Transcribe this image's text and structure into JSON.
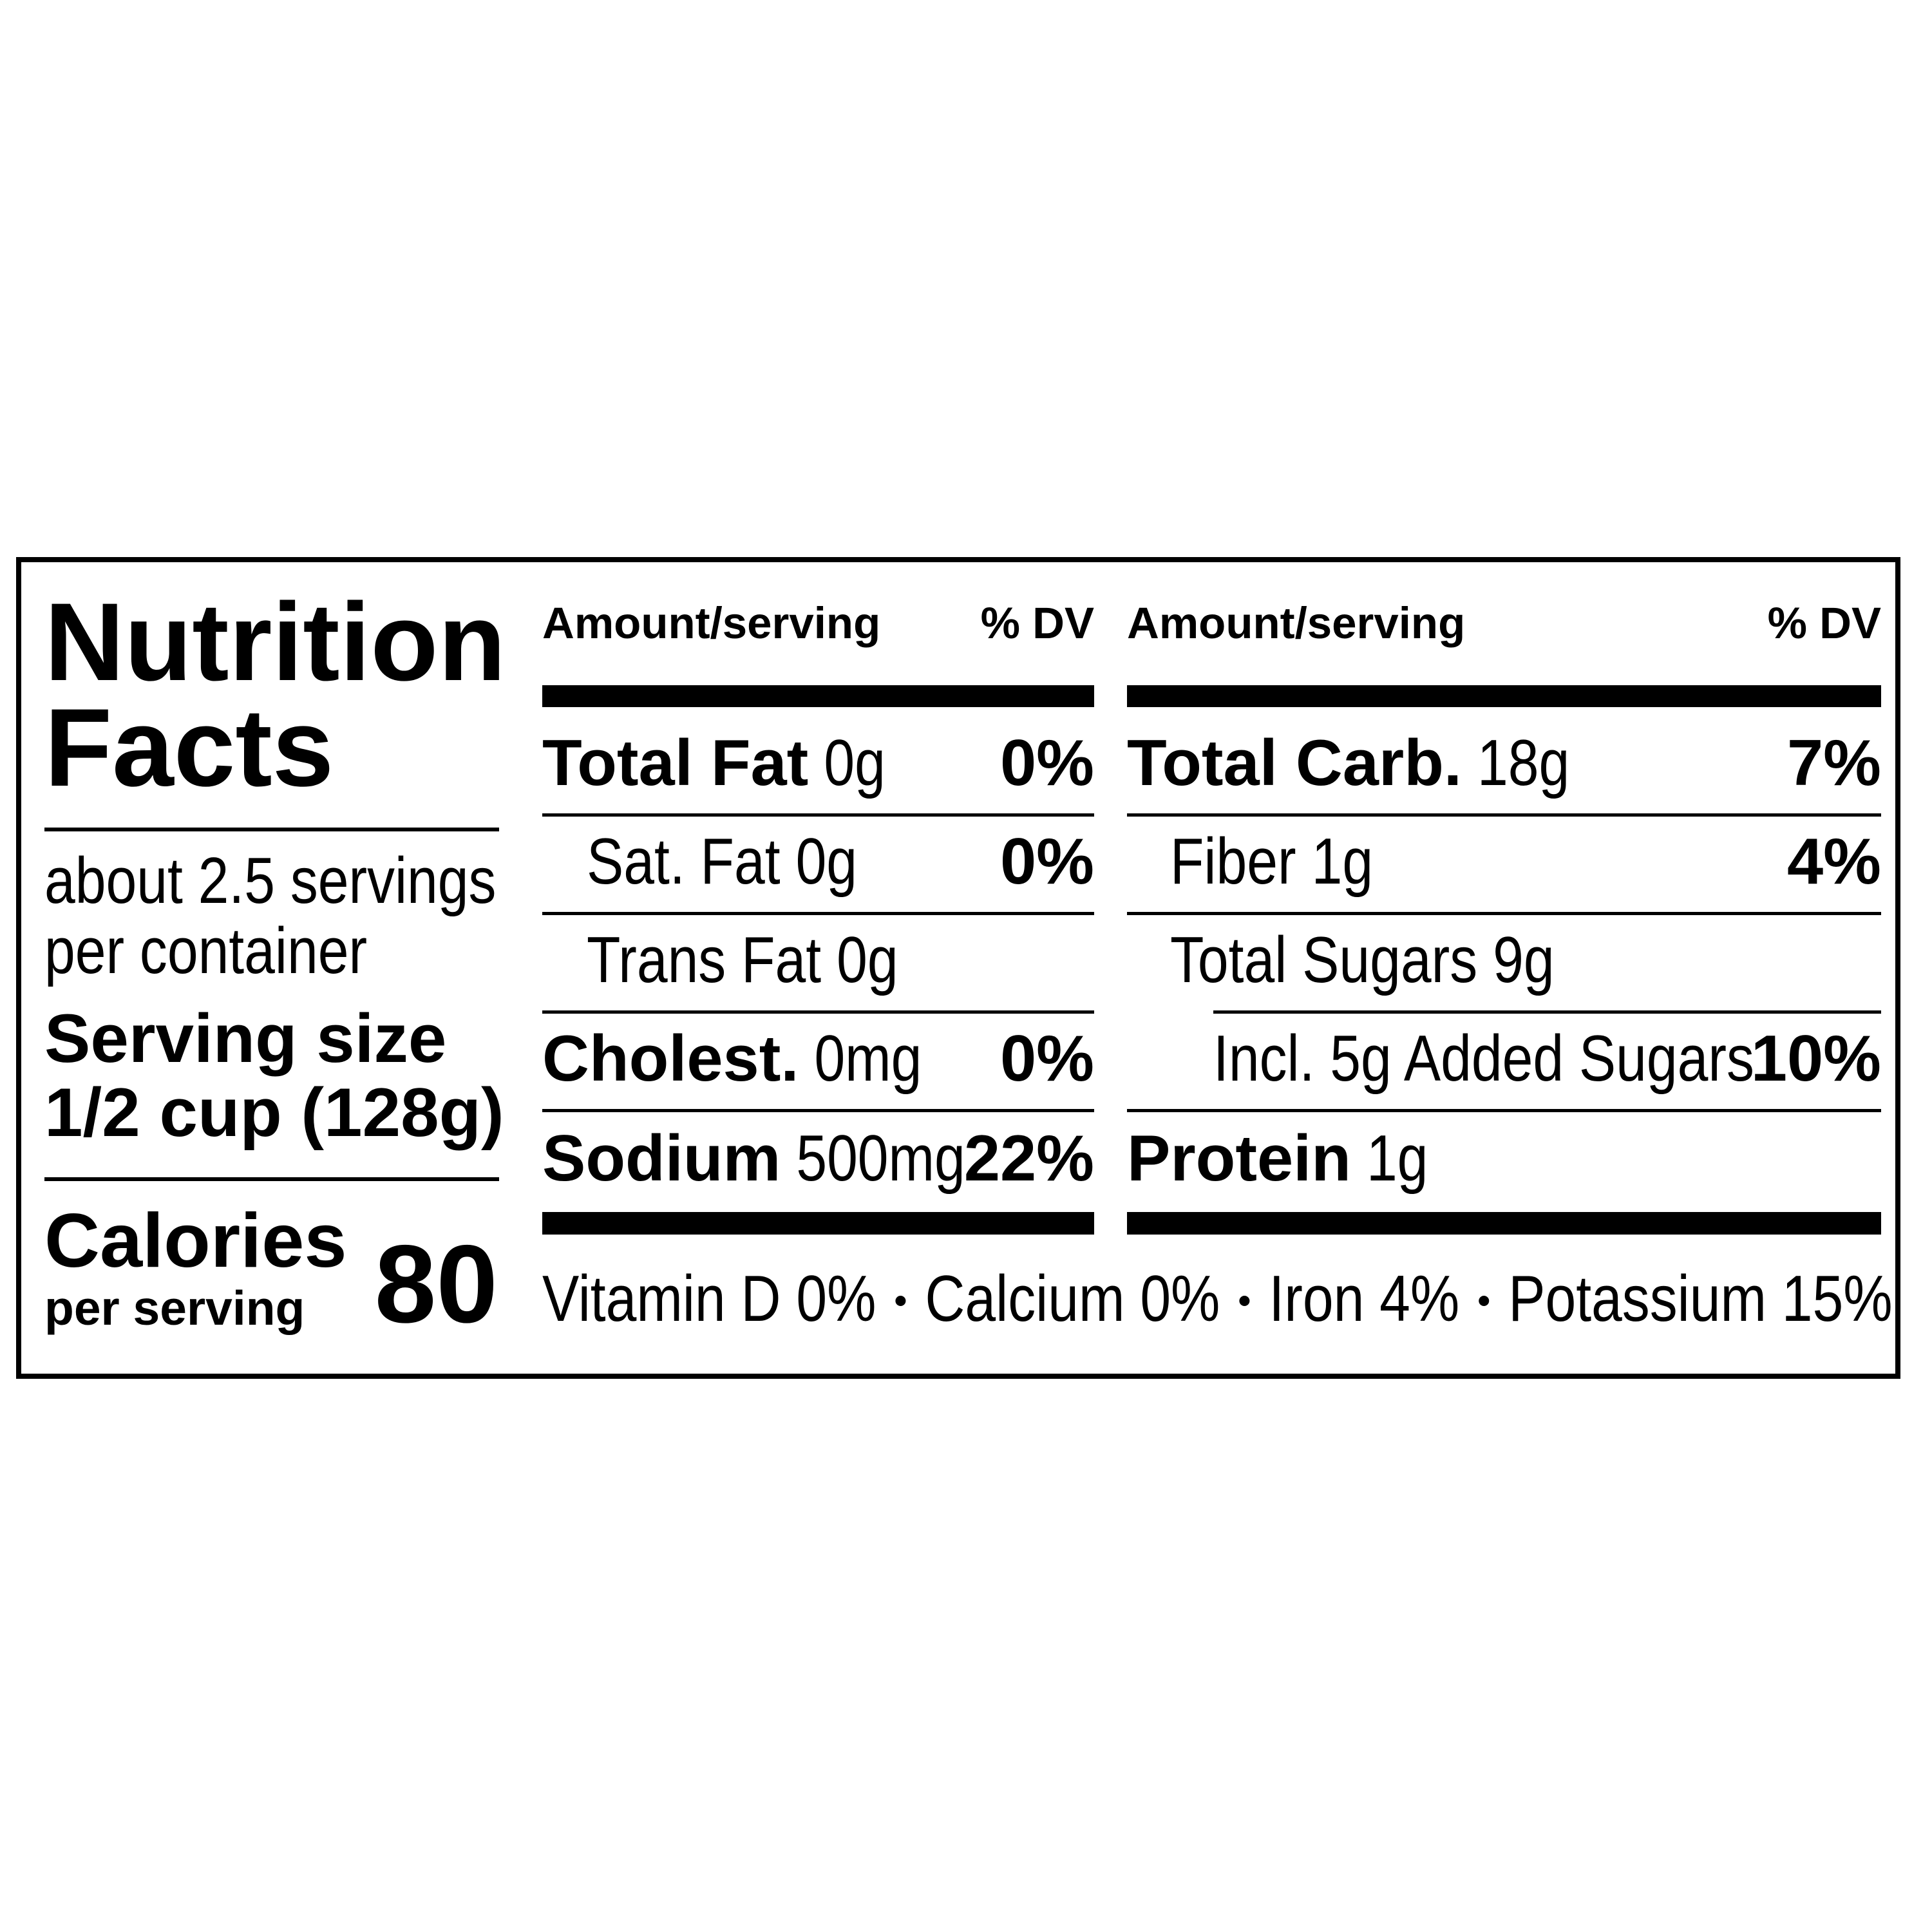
{
  "title": [
    "Nutrition",
    "Facts"
  ],
  "servings": [
    "about 2.5 servings",
    "per container"
  ],
  "serving_size": {
    "label": "Serving size",
    "value": "1/2 cup (128g)"
  },
  "calories": {
    "label": "Calories",
    "sublabel": "per serving",
    "value": "80"
  },
  "columns": [
    {
      "header": {
        "amount": "Amount/serving",
        "dv": "% DV"
      },
      "rows": [
        {
          "name": "Total Fat",
          "amount": "0g",
          "dv": "0%"
        },
        {
          "name": "Sat. Fat",
          "amount": "0g",
          "dv": "0%"
        },
        {
          "name": "Trans Fat",
          "amount": "0g"
        },
        {
          "name": "Cholest.",
          "amount": "0mg",
          "dv": "0%"
        },
        {
          "name": "Sodium",
          "amount": "500mg",
          "dv": "22%"
        }
      ]
    },
    {
      "header": {
        "amount": "Amount/serving",
        "dv": "% DV"
      },
      "rows": [
        {
          "name": "Total Carb.",
          "amount": "18g",
          "dv": "7%"
        },
        {
          "name": "Fiber",
          "amount": "1g",
          "dv": "4%"
        },
        {
          "name": "Total Sugars",
          "amount": "9g"
        },
        {
          "name": "Incl. 5g Added Sugars",
          "dv": "10%"
        },
        {
          "name": "Protein",
          "amount": "1g"
        }
      ]
    }
  ],
  "vitamins": [
    "Vitamin D 0%",
    "Calcium 0%",
    "Iron 4%",
    "Potassium 15%"
  ]
}
